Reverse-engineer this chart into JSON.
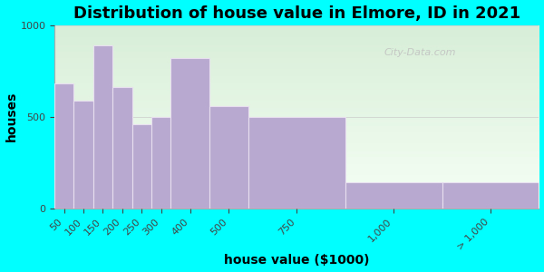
{
  "title": "Distribution of house value in Elmore, ID in 2021",
  "xlabel": "house value ($1000)",
  "ylabel": "houses",
  "bar_labels": [
    "50",
    "100",
    "150",
    "200",
    "250",
    "300",
    "400",
    "500",
    "750",
    "1,000",
    "> 1,000"
  ],
  "bar_values": [
    680,
    590,
    890,
    660,
    460,
    500,
    820,
    560,
    500,
    140,
    140
  ],
  "bin_edges": [
    0,
    50,
    100,
    150,
    200,
    250,
    300,
    400,
    500,
    750,
    1000,
    1250
  ],
  "bar_color": "#b8a9d0",
  "bar_edge_color": "#e8e0f0",
  "ylim": [
    0,
    1000
  ],
  "yticks": [
    0,
    500,
    1000
  ],
  "bg_outer": "#00ffff",
  "title_fontsize": 13,
  "axis_label_fontsize": 10,
  "tick_fontsize": 8,
  "watermark_text": "City-Data.com",
  "watermark_color": "#c0c0c0"
}
